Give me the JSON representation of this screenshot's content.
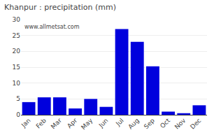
{
  "chart_data": {
    "type": "bar",
    "title": "Khanpur : precipitation (mm)",
    "categories": [
      "Jan",
      "Feb",
      "Mar",
      "Apr",
      "May",
      "Jun",
      "Jul",
      "Aug",
      "Sep",
      "Oct",
      "Nov",
      "Dec"
    ],
    "values": [
      4.0,
      5.5,
      5.5,
      2.0,
      5.0,
      2.5,
      27.0,
      23.0,
      15.3,
      1.0,
      0.5,
      3.0
    ],
    "color": "#0000dd",
    "ylim": [
      0,
      30
    ],
    "yticks": [
      0,
      5,
      10,
      15,
      20,
      25,
      30
    ],
    "grid": true,
    "annotations": [
      "www.allmetsat.com"
    ]
  }
}
